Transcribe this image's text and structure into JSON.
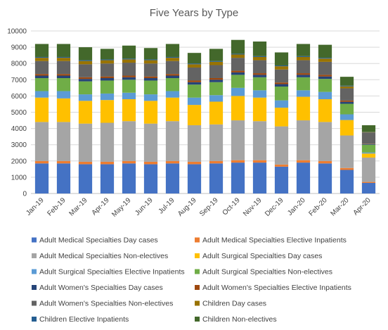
{
  "chart_data": {
    "type": "bar",
    "stacked": true,
    "title": "Five Years by Type",
    "xlabel": "",
    "ylabel": "",
    "ylim": [
      0,
      10000
    ],
    "yticks": [
      0,
      1000,
      2000,
      3000,
      4000,
      5000,
      6000,
      7000,
      8000,
      9000,
      10000
    ],
    "grid": true,
    "legend_position": "bottom",
    "categories": [
      "Jan-19",
      "Feb-19",
      "Mar-19",
      "Apr-19",
      "May-19",
      "Jun-19",
      "Jul-19",
      "Aug-19",
      "Sep-19",
      "Oct-19",
      "Nov-19",
      "Dec-19",
      "Jan-20",
      "Feb-20",
      "Mar-20",
      "Apr-20"
    ],
    "series": [
      {
        "name": "Adult Medical Specialties Day cases",
        "color": "#4472c4",
        "values": [
          1850,
          1850,
          1800,
          1800,
          1850,
          1800,
          1850,
          1800,
          1850,
          1900,
          1900,
          1650,
          1900,
          1850,
          1450,
          650
        ]
      },
      {
        "name": "Adult Medical Specialties Elective Inpatients",
        "color": "#ed7d31",
        "values": [
          150,
          150,
          150,
          150,
          150,
          150,
          150,
          150,
          150,
          150,
          150,
          130,
          150,
          150,
          120,
          60
        ]
      },
      {
        "name": "Adult Medical Specialties Non-electives",
        "color": "#a5a5a5",
        "values": [
          2400,
          2400,
          2350,
          2400,
          2450,
          2350,
          2450,
          2250,
          2250,
          2450,
          2400,
          2350,
          2450,
          2400,
          2000,
          1500
        ]
      },
      {
        "name": "Adult Surgical Specialties Day cases",
        "color": "#ffc000",
        "values": [
          1500,
          1450,
          1400,
          1400,
          1350,
          1400,
          1450,
          1250,
          1400,
          1500,
          1450,
          1150,
          1450,
          1400,
          950,
          250
        ]
      },
      {
        "name": "Adult Surgical Specialties Elective Inpatients",
        "color": "#5b9bd5",
        "values": [
          400,
          450,
          400,
          400,
          400,
          400,
          400,
          450,
          400,
          500,
          450,
          450,
          400,
          450,
          350,
          60
        ]
      },
      {
        "name": "Adult Surgical Specialties Non-electives",
        "color": "#70ad47",
        "values": [
          800,
          800,
          800,
          800,
          800,
          850,
          800,
          800,
          800,
          800,
          800,
          850,
          800,
          800,
          650,
          480
        ]
      },
      {
        "name": "Adult Women's Specialties Day cases",
        "color": "#264478",
        "values": [
          150,
          150,
          150,
          150,
          150,
          150,
          150,
          150,
          150,
          150,
          150,
          150,
          150,
          150,
          120,
          40
        ]
      },
      {
        "name": "Adult Women's Specialties Elective Inpatients",
        "color": "#9e480e",
        "values": [
          100,
          100,
          100,
          100,
          100,
          100,
          100,
          100,
          100,
          100,
          100,
          100,
          100,
          100,
          80,
          20
        ]
      },
      {
        "name": "Adult Women's Specialties Non-electives",
        "color": "#636363",
        "values": [
          800,
          800,
          800,
          800,
          800,
          800,
          800,
          800,
          800,
          800,
          800,
          800,
          800,
          800,
          750,
          700
        ]
      },
      {
        "name": "Children Day cases",
        "color": "#997300",
        "values": [
          200,
          200,
          200,
          200,
          200,
          200,
          200,
          200,
          200,
          200,
          200,
          200,
          200,
          200,
          120,
          20
        ]
      },
      {
        "name": "Children Elective Inpatients",
        "color": "#255e91",
        "values": [
          50,
          50,
          50,
          50,
          50,
          50,
          50,
          50,
          50,
          50,
          50,
          50,
          50,
          50,
          40,
          10
        ]
      },
      {
        "name": "Children Non-electives",
        "color": "#43682b",
        "values": [
          800,
          800,
          800,
          650,
          800,
          700,
          800,
          650,
          750,
          850,
          900,
          800,
          750,
          800,
          550,
          410
        ]
      }
    ]
  }
}
